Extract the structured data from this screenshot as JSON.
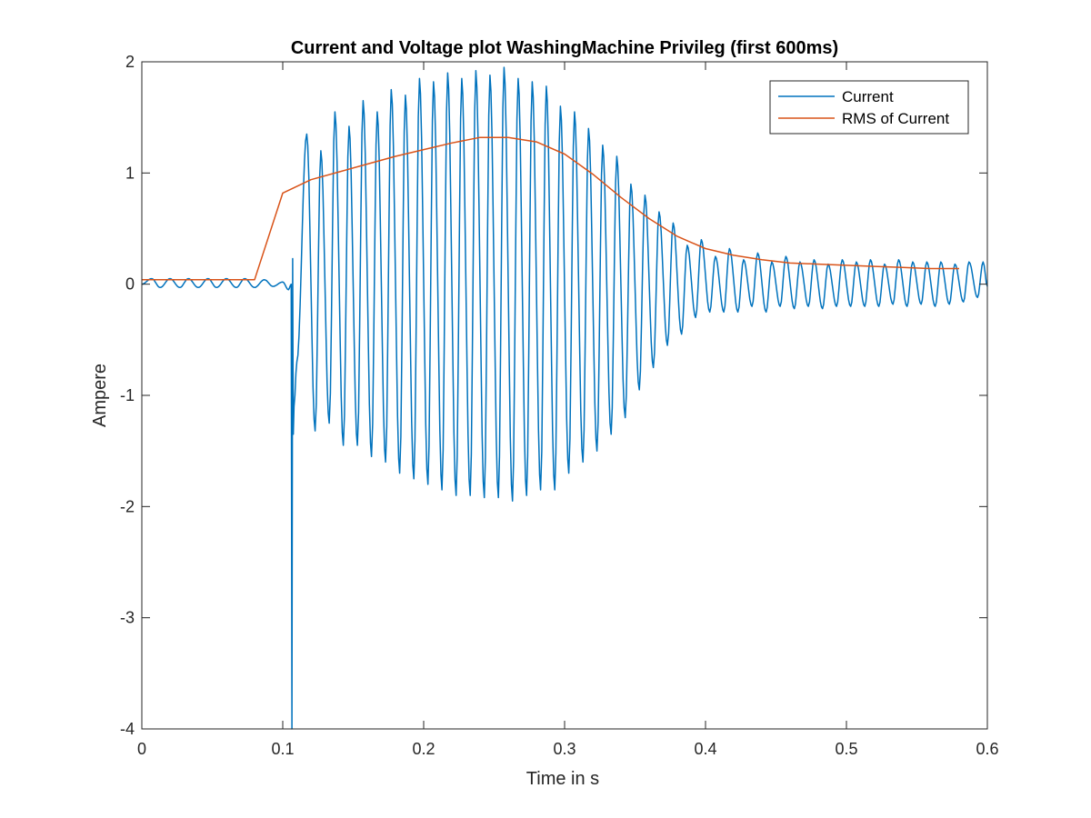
{
  "chart_data": {
    "type": "line",
    "title": "Current and Voltage plot WashingMachine Privileg (first 600ms)",
    "xlabel": "Time in s",
    "ylabel": "Ampere",
    "xlim": [
      0,
      0.6
    ],
    "ylim": [
      -4,
      2
    ],
    "x_ticks": [
      0,
      0.1,
      0.2,
      0.3,
      0.4,
      0.5,
      0.6
    ],
    "x_tick_labels": [
      "0",
      "0.1",
      "0.2",
      "0.3",
      "0.4",
      "0.5",
      "0.6"
    ],
    "y_ticks": [
      -4,
      -3,
      -2,
      -1,
      0,
      1,
      2
    ],
    "y_tick_labels": [
      "-4",
      "-3",
      "-2",
      "-1",
      "0",
      "1",
      "2"
    ],
    "grid": false,
    "legend_position": "top-right",
    "series": [
      {
        "name": "Current",
        "color": "#0072BD",
        "description_points": {
          "x": [
            0.0,
            0.007,
            0.013,
            0.02,
            0.027,
            0.033,
            0.04,
            0.047,
            0.053,
            0.06,
            0.067,
            0.073,
            0.08,
            0.087,
            0.093,
            0.1,
            0.104,
            0.106,
            0.1065,
            0.107,
            0.1075,
            0.108,
            0.11,
            0.117,
            0.123,
            0.127,
            0.133,
            0.137,
            0.143,
            0.147,
            0.153,
            0.157,
            0.163,
            0.167,
            0.173,
            0.177,
            0.183,
            0.187,
            0.193,
            0.197,
            0.203,
            0.207,
            0.213,
            0.217,
            0.223,
            0.227,
            0.233,
            0.237,
            0.243,
            0.247,
            0.253,
            0.257,
            0.263,
            0.267,
            0.273,
            0.277,
            0.283,
            0.287,
            0.293,
            0.297,
            0.303,
            0.307,
            0.313,
            0.317,
            0.323,
            0.327,
            0.333,
            0.337,
            0.343,
            0.347,
            0.353,
            0.357,
            0.363,
            0.367,
            0.373,
            0.377,
            0.383,
            0.387,
            0.393,
            0.397,
            0.403,
            0.407,
            0.413,
            0.417,
            0.423,
            0.427,
            0.433,
            0.437,
            0.443,
            0.447,
            0.453,
            0.457,
            0.463,
            0.467,
            0.473,
            0.477,
            0.483,
            0.487,
            0.493,
            0.497,
            0.503,
            0.507,
            0.513,
            0.517,
            0.523,
            0.527,
            0.533,
            0.537,
            0.543,
            0.547,
            0.553,
            0.557,
            0.563,
            0.567,
            0.573,
            0.577,
            0.583,
            0.587,
            0.593,
            0.597,
            0.6
          ],
          "y": [
            0.0,
            0.05,
            -0.03,
            0.05,
            -0.03,
            0.05,
            -0.03,
            0.05,
            -0.03,
            0.05,
            -0.03,
            0.05,
            -0.03,
            0.04,
            -0.02,
            0.02,
            -0.05,
            0.0,
            -4.0,
            0.23,
            -1.35,
            -1.1,
            -0.7,
            1.35,
            -1.32,
            1.2,
            -1.25,
            1.55,
            -1.45,
            1.42,
            -1.45,
            1.65,
            -1.55,
            1.55,
            -1.6,
            1.75,
            -1.7,
            1.7,
            -1.75,
            1.85,
            -1.8,
            1.82,
            -1.85,
            1.9,
            -1.9,
            1.85,
            -1.9,
            1.92,
            -1.92,
            1.88,
            -1.92,
            1.95,
            -1.95,
            1.85,
            -1.9,
            1.82,
            -1.85,
            1.78,
            -1.85,
            1.6,
            -1.7,
            1.55,
            -1.6,
            1.4,
            -1.5,
            1.25,
            -1.35,
            1.15,
            -1.2,
            0.9,
            -0.95,
            0.8,
            -0.75,
            0.65,
            -0.55,
            0.55,
            -0.45,
            0.35,
            -0.3,
            0.4,
            -0.25,
            0.25,
            -0.25,
            0.32,
            -0.25,
            0.22,
            -0.2,
            0.28,
            -0.25,
            0.2,
            -0.2,
            0.25,
            -0.22,
            0.2,
            -0.2,
            0.22,
            -0.22,
            0.18,
            -0.2,
            0.22,
            -0.2,
            0.2,
            -0.2,
            0.22,
            -0.2,
            0.18,
            -0.18,
            0.22,
            -0.2,
            0.2,
            -0.18,
            0.2,
            -0.2,
            0.2,
            -0.18,
            0.18,
            -0.16,
            0.2,
            -0.12,
            0.2,
            -0.02
          ]
        }
      },
      {
        "name": "RMS of Current",
        "color": "#D95319",
        "x": [
          0.0,
          0.02,
          0.04,
          0.06,
          0.08,
          0.1,
          0.12,
          0.14,
          0.16,
          0.18,
          0.2,
          0.22,
          0.24,
          0.26,
          0.28,
          0.3,
          0.32,
          0.34,
          0.36,
          0.38,
          0.4,
          0.42,
          0.44,
          0.46,
          0.48,
          0.5,
          0.52,
          0.54,
          0.56,
          0.58
        ],
        "y": [
          0.04,
          0.04,
          0.04,
          0.04,
          0.04,
          0.82,
          0.94,
          1.01,
          1.08,
          1.15,
          1.21,
          1.27,
          1.32,
          1.32,
          1.28,
          1.17,
          0.99,
          0.78,
          0.59,
          0.43,
          0.32,
          0.26,
          0.22,
          0.19,
          0.18,
          0.17,
          0.16,
          0.15,
          0.14,
          0.14
        ]
      }
    ]
  }
}
